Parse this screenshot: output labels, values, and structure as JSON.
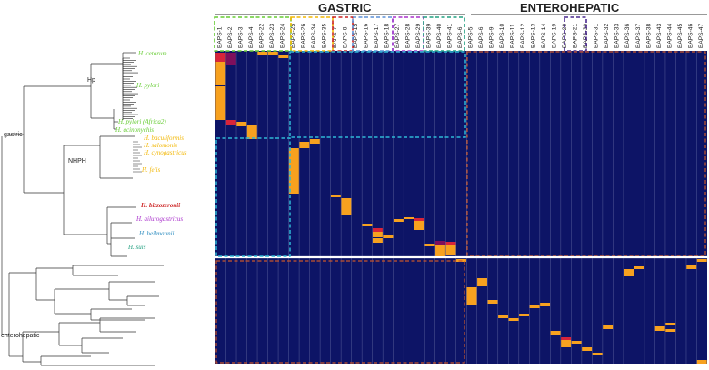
{
  "headers": {
    "gastric": "GASTRIC",
    "enterohepatic": "ENTEROHEPATIC"
  },
  "columns": [
    "BAPS-1",
    "BAPS-2",
    "BAPS-3",
    "BAPS-4",
    "BAPS-22",
    "BAPS-23",
    "BAPS-24",
    "BAPS-25",
    "BAPS-26",
    "BAPS-34",
    "BAPS-35",
    "BAPS-7",
    "BAPS-8",
    "BAPS-15",
    "BAPS-16",
    "BAPS-17",
    "BAPS-18",
    "BAPS-27",
    "BAPS-28",
    "BAPS-29",
    "BAPS-39",
    "BAPS-40",
    "BAPS-41",
    "BAPS-6",
    "BAPS-5",
    "BAPS-6",
    "BAPS-9",
    "BAPS-10",
    "BAPS-11",
    "BAPS-12",
    "BAPS-13",
    "BAPS-14",
    "BAPS-19",
    "BAPS-20",
    "BAPS-21",
    "BAPS-30",
    "BAPS-31",
    "BAPS-32",
    "BAPS-33",
    "BAPS-36",
    "BAPS-37",
    "BAPS-38",
    "BAPS-43",
    "BAPS-44",
    "BAPS-45",
    "BAPS-46",
    "BAPS-47"
  ],
  "tree_groups": [
    {
      "label": "Hp",
      "color": "#222222"
    },
    {
      "label": "NHPH",
      "color": "#222222"
    },
    {
      "label": "gastric",
      "color": "#222222"
    },
    {
      "label": "enterohepatic",
      "color": "#222222"
    }
  ],
  "species": [
    {
      "label": "H. cetorum",
      "color": "#66cc33"
    },
    {
      "label": "H. pylori",
      "color": "#66cc33"
    },
    {
      "label": "H. pylori (Africa2)",
      "color": "#66cc33"
    },
    {
      "label": "H. acinonychis",
      "color": "#66cc33"
    },
    {
      "label": "H. baculiformis",
      "color": "#f2b705"
    },
    {
      "label": "H. salomonis",
      "color": "#f2b705"
    },
    {
      "label": "H. cynogastricus",
      "color": "#f2b705"
    },
    {
      "label": "H. felis",
      "color": "#f2b705"
    },
    {
      "label": "H. bizzozeronii",
      "color": "#cc2222"
    },
    {
      "label": "H. ailurogastricus",
      "color": "#aa33cc"
    },
    {
      "label": "H. heilmannii",
      "color": "#2a8bbf"
    },
    {
      "label": "H. suis",
      "color": "#22a080"
    }
  ],
  "colors": {
    "heat_bg": "#0d1466",
    "heat_orange": "#f7a11f",
    "heat_red": "#d8243a",
    "heat_magenta": "#7e0f5c",
    "box_cyan": "#2fb8d6",
    "box_orange": "#c9562a",
    "box_green": "#66cc33",
    "box_yellow": "#f2b705",
    "box_red": "#cc2222",
    "box_blue": "#5b8fd6",
    "box_purple": "#aa33cc",
    "box_teal": "#22a080",
    "box_darkpurple": "#4b2a8f"
  }
}
